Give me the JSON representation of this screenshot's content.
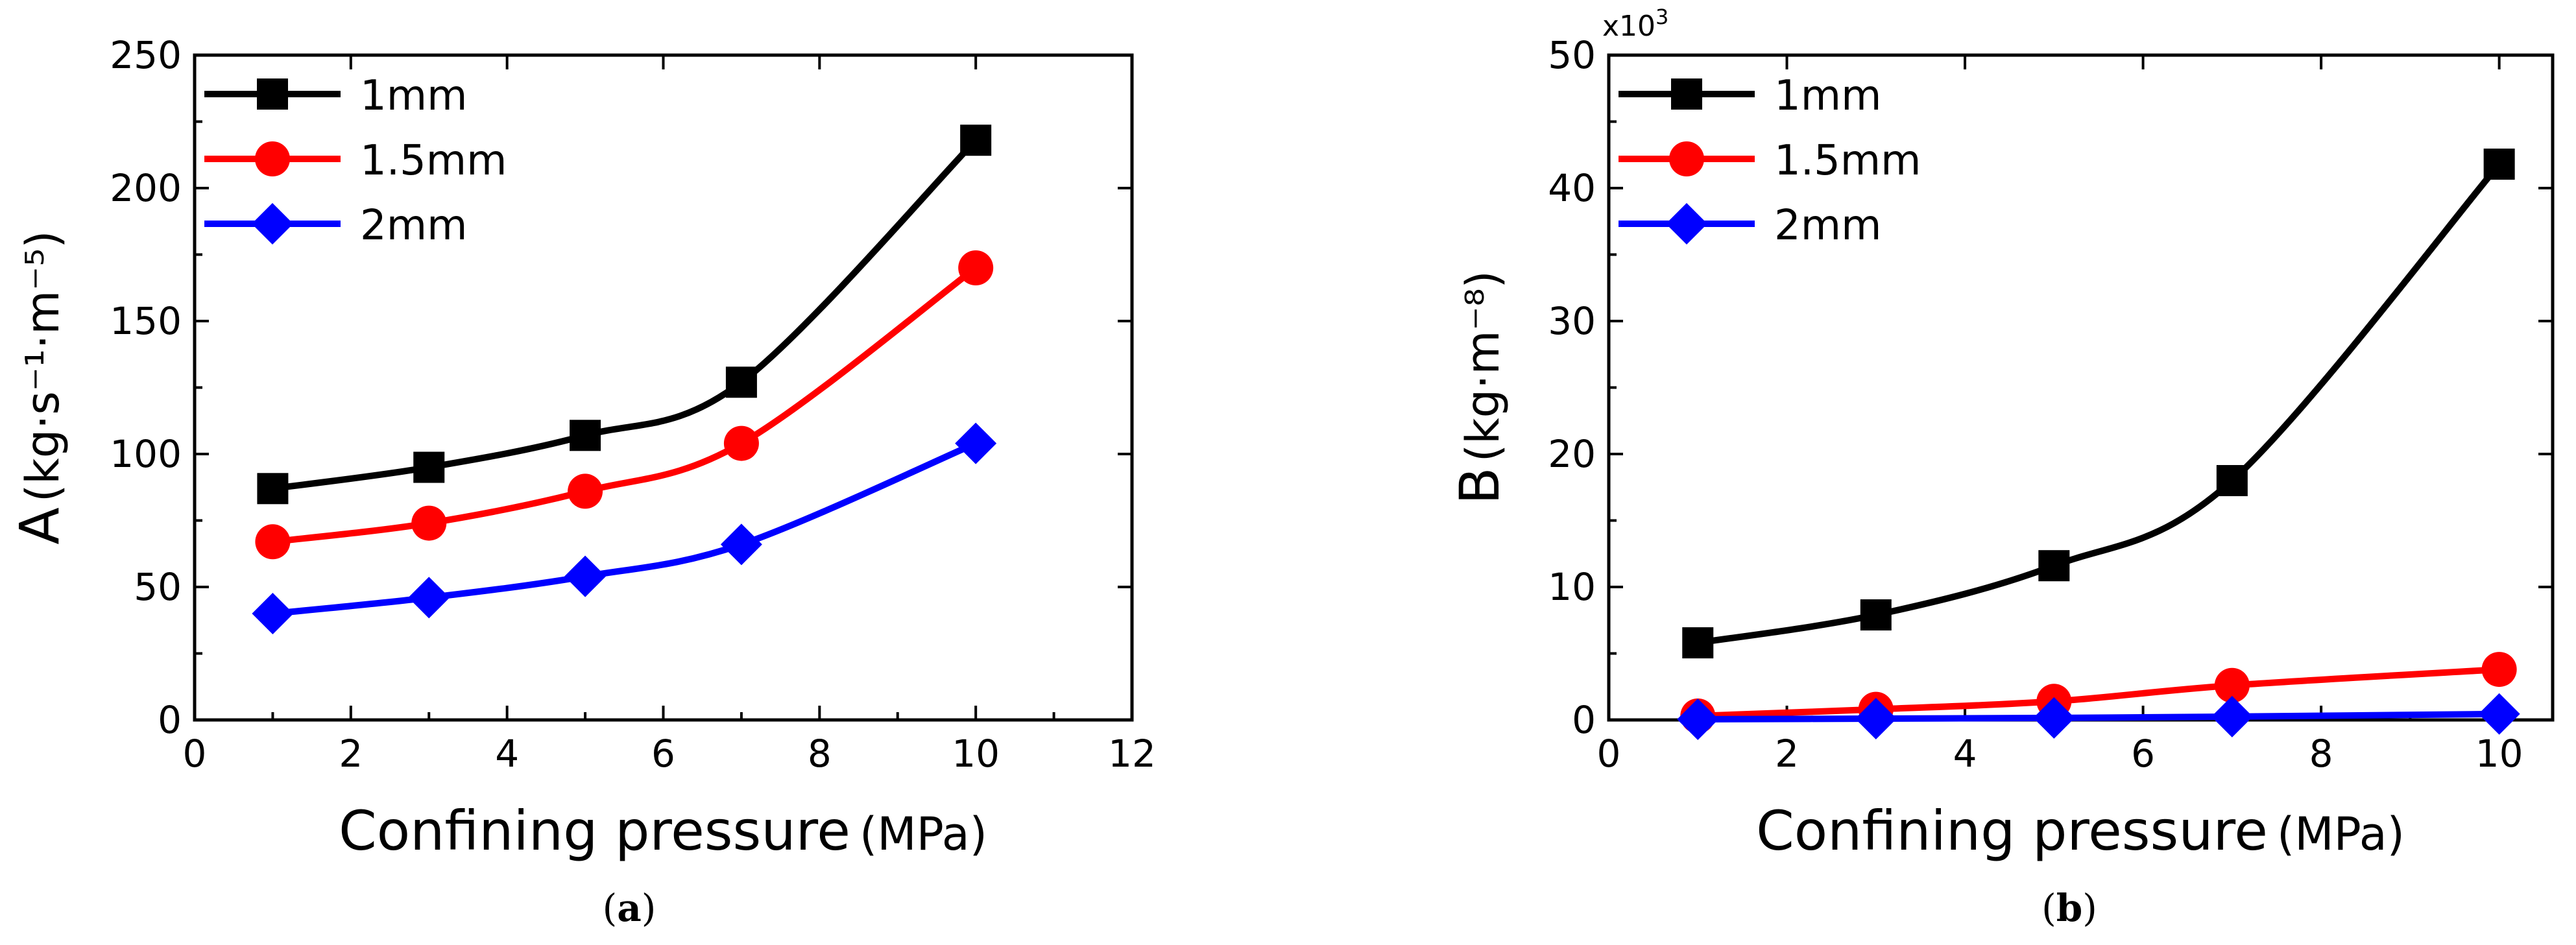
{
  "chart_data": [
    {
      "panel": "a",
      "type": "line",
      "caption_letter": "a",
      "xlabel": "Confining pressure",
      "xlabel_unit": "(MPa)",
      "ylabel_main": "A",
      "ylabel_unit": "(kg·s⁻¹·m⁻⁵)",
      "xlim": [
        0,
        12
      ],
      "ylim": [
        0,
        250
      ],
      "xticks": [
        0,
        2,
        4,
        6,
        8,
        10,
        12
      ],
      "yticks": [
        0,
        50,
        100,
        150,
        200,
        250
      ],
      "y_multiplier": "",
      "x": [
        1,
        3,
        5,
        7,
        10
      ],
      "series": [
        {
          "name": "1mm",
          "color": "#000000",
          "marker": "square",
          "values": [
            87,
            95,
            107,
            127,
            218
          ]
        },
        {
          "name": "1.5mm",
          "color": "#ff0000",
          "marker": "circle",
          "values": [
            67,
            74,
            86,
            104,
            170
          ]
        },
        {
          "name": "2mm",
          "color": "#0000ff",
          "marker": "diamond",
          "values": [
            40,
            46,
            54,
            66,
            104
          ]
        }
      ],
      "legend_position": "top-left"
    },
    {
      "panel": "b",
      "type": "line",
      "caption_letter": "b",
      "xlabel": "Confining pressure",
      "xlabel_unit": "(MPa)",
      "ylabel_main": "B",
      "ylabel_unit": "(kg·m⁻⁸)",
      "xlim": [
        0,
        10.6
      ],
      "ylim": [
        0,
        50
      ],
      "xticks": [
        0,
        2,
        4,
        6,
        8,
        10
      ],
      "yticks": [
        0,
        10,
        20,
        30,
        40,
        50
      ],
      "y_multiplier": "x10",
      "y_multiplier_exp": "3",
      "x": [
        1,
        3,
        5,
        7,
        10
      ],
      "series": [
        {
          "name": "1mm",
          "color": "#000000",
          "marker": "square",
          "values": [
            5.8,
            7.9,
            11.6,
            18.0,
            41.8
          ]
        },
        {
          "name": "1.5mm",
          "color": "#ff0000",
          "marker": "circle",
          "values": [
            0.3,
            0.8,
            1.4,
            2.6,
            3.8
          ]
        },
        {
          "name": "2mm",
          "color": "#0000ff",
          "marker": "diamond",
          "values": [
            0.05,
            0.1,
            0.15,
            0.25,
            0.45
          ]
        }
      ],
      "legend_position": "top-left"
    }
  ]
}
